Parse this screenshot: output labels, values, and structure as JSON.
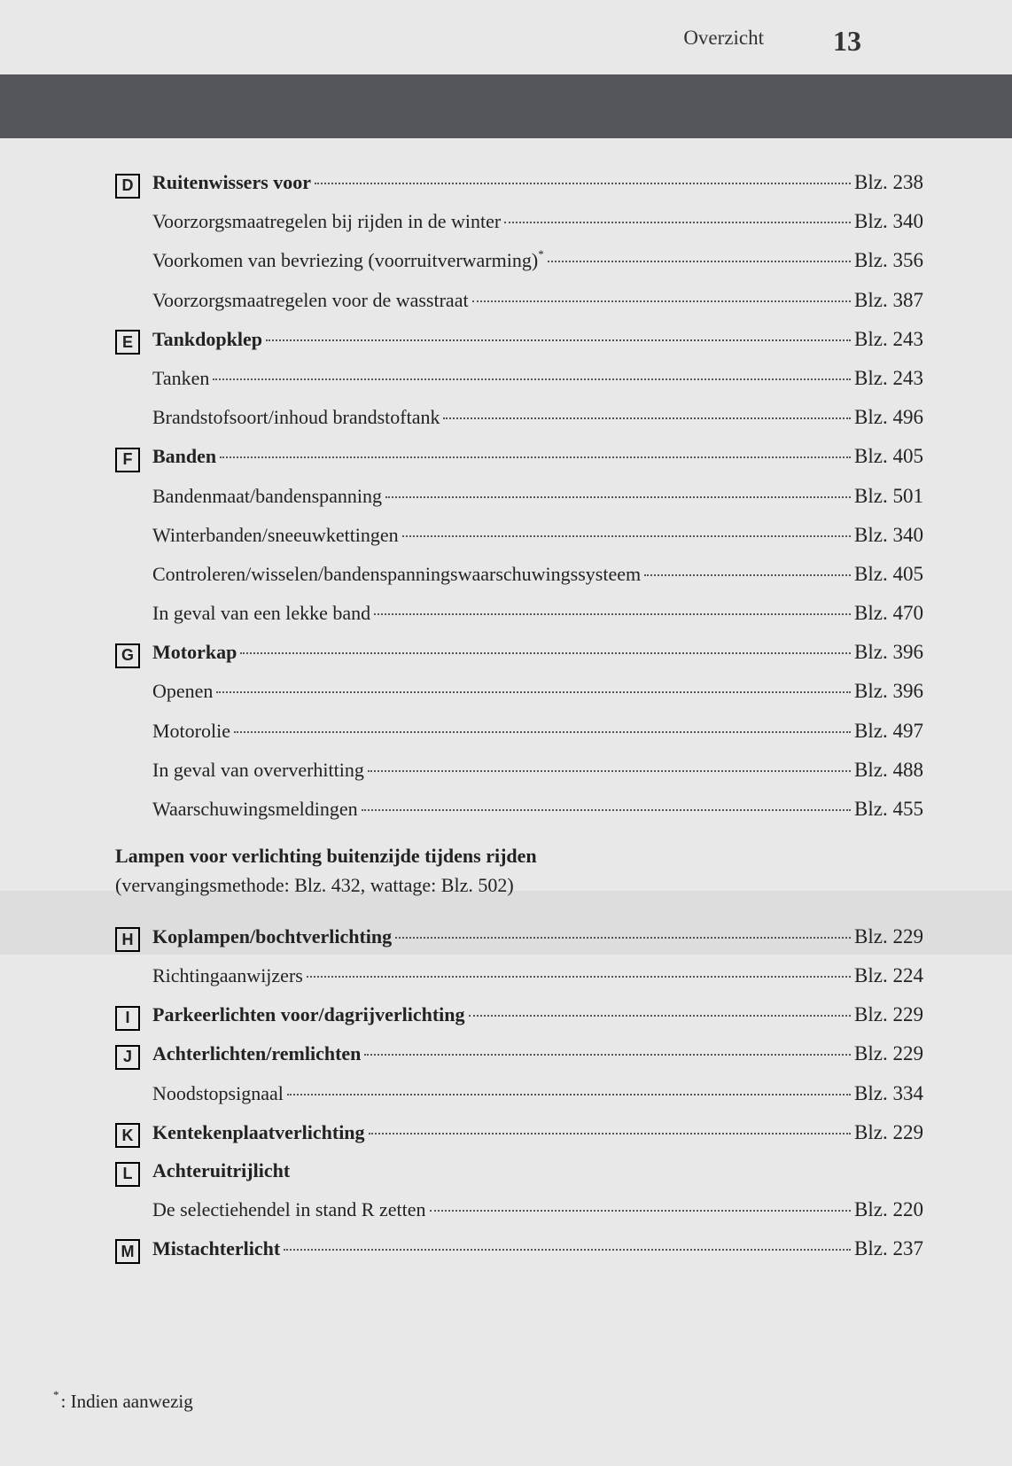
{
  "header": {
    "title": "Overzicht",
    "page_number": "13"
  },
  "page_ref_prefix": "Blz.",
  "groups": [
    {
      "letter": "D",
      "entries": [
        {
          "label": "Ruitenwissers voor",
          "page": "238",
          "bold": true
        },
        {
          "label": "Voorzorgsmaatregelen bij rijden in de winter",
          "page": "340"
        },
        {
          "label": "Voorkomen van bevriezing (voorruitverwarming)",
          "sup": "*",
          "page": "356"
        },
        {
          "label": "Voorzorgsmaatregelen voor de wasstraat",
          "page": "387"
        }
      ]
    },
    {
      "letter": "E",
      "entries": [
        {
          "label": "Tankdopklep",
          "page": "243",
          "bold": true
        },
        {
          "label": "Tanken",
          "page": "243"
        },
        {
          "label": "Brandstofsoort/inhoud brandstoftank",
          "page": "496"
        }
      ]
    },
    {
      "letter": "F",
      "entries": [
        {
          "label": "Banden",
          "page": "405",
          "bold": true
        },
        {
          "label": "Bandenmaat/bandenspanning",
          "page": "501"
        },
        {
          "label": "Winterbanden/sneeuwkettingen",
          "page": "340"
        },
        {
          "label": "Controleren/wisselen/bandenspanningswaarschuwingssysteem",
          "page": "405"
        },
        {
          "label": "In geval van een lekke band",
          "page": "470"
        }
      ]
    },
    {
      "letter": "G",
      "entries": [
        {
          "label": "Motorkap",
          "page": "396",
          "bold": true
        },
        {
          "label": "Openen",
          "page": "396"
        },
        {
          "label": "Motorolie",
          "page": "497"
        },
        {
          "label": "In geval van oververhitting",
          "page": "488"
        },
        {
          "label": "Waarschuwingsmeldingen",
          "page": "455"
        }
      ]
    }
  ],
  "section2": {
    "title": "Lampen voor verlichting buitenzijde tijdens rijden",
    "sub": "(vervangingsmethode: Blz. 432, wattage: Blz. 502)"
  },
  "groups2": [
    {
      "letter": "H",
      "entries": [
        {
          "label": "Koplampen/bochtverlichting",
          "page": "229",
          "bold": true
        },
        {
          "label": "Richtingaanwijzers",
          "page": "224"
        }
      ]
    },
    {
      "letter": "I",
      "entries": [
        {
          "label": "Parkeerlichten voor/dagrijverlichting",
          "page": "229",
          "bold": true
        }
      ]
    },
    {
      "letter": "J",
      "entries": [
        {
          "label": "Achterlichten/remlichten",
          "page": "229",
          "bold": true
        },
        {
          "label": "Noodstopsignaal",
          "page": "334"
        }
      ]
    },
    {
      "letter": "K",
      "entries": [
        {
          "label": "Kentekenplaatverlichting",
          "page": "229",
          "bold": true
        }
      ]
    },
    {
      "letter": "L",
      "entries": [
        {
          "label": "Achteruitrijlicht",
          "page": null,
          "bold": true
        },
        {
          "label": "De selectiehendel in stand R zetten",
          "page": "220"
        }
      ]
    },
    {
      "letter": "M",
      "entries": [
        {
          "label": "Mistachterlicht",
          "page": "237",
          "bold": true
        }
      ]
    }
  ],
  "footnote": {
    "marker": "*",
    "text": ": Indien aanwezig"
  }
}
